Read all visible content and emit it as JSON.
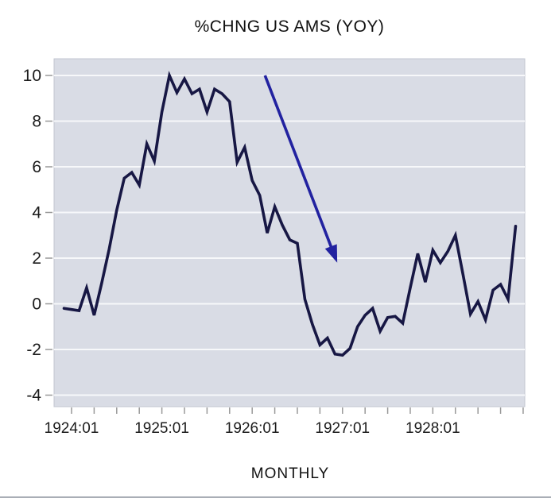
{
  "title": "%CHNG US AMS (YOY)",
  "x_axis_title": "MONTHLY",
  "colors": {
    "line": "#171744",
    "arrow": "#2222a0",
    "plot_bg": "#d9dce5",
    "grid": "#f7f8fa",
    "plot_border": "#c2c6d0",
    "tick": "#999999",
    "text": "#1b1b1b",
    "bottom_border": "#a9aeb6"
  },
  "chart_data": {
    "type": "line",
    "title": "%CHNG US AMS (YOY)",
    "xlabel": "MONTHLY",
    "frequency": "monthly",
    "start_month": "1923:12",
    "end_month": "1928:12",
    "grid": "horizontal-only",
    "legend": "none",
    "ylim": [
      -4.5,
      10.75
    ],
    "y_ticks": [
      10,
      8,
      6,
      4,
      2,
      0,
      -2,
      -4
    ],
    "y_tick_labels": [
      "10",
      "8",
      "6",
      "4",
      "2",
      "0",
      "-2",
      "-4"
    ],
    "x_major_ticks": [
      {
        "label": "1924:01",
        "month_index": 1
      },
      {
        "label": "1925:01",
        "month_index": 13
      },
      {
        "label": "1926:01",
        "month_index": 25
      },
      {
        "label": "1927:01",
        "month_index": 37
      },
      {
        "label": "1928:01",
        "month_index": 49
      }
    ],
    "x_minor_tick_every_months": 3,
    "x_minor_tick_range": [
      1,
      61
    ],
    "series": [
      {
        "name": "%CHNG US AMS (YOY)",
        "values": [
          -0.2,
          -0.25,
          -0.3,
          0.7,
          -0.5,
          0.9,
          2.4,
          4.1,
          5.5,
          5.75,
          5.2,
          7.0,
          6.25,
          8.4,
          10.0,
          9.25,
          9.85,
          9.2,
          9.4,
          8.4,
          9.4,
          9.2,
          8.85,
          6.2,
          6.85,
          5.4,
          4.75,
          3.1,
          4.25,
          3.45,
          2.8,
          2.65,
          0.2,
          -0.9,
          -1.8,
          -1.5,
          -2.2,
          -2.25,
          -1.95,
          -1.0,
          -0.5,
          -0.2,
          -1.2,
          -0.6,
          -0.55,
          -0.85,
          0.7,
          2.2,
          0.95,
          2.35,
          1.8,
          2.3,
          3.0,
          1.3,
          -0.45,
          0.1,
          -0.7,
          0.6,
          0.85,
          0.2,
          3.4
        ]
      }
    ],
    "annotation_arrow": {
      "from": {
        "month_index": 26.7,
        "value": 10.0
      },
      "to": {
        "month_index": 36.3,
        "value": 1.8
      }
    }
  }
}
